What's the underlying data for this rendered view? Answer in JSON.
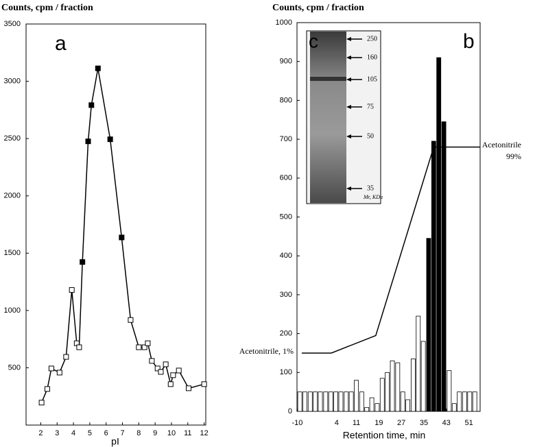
{
  "chart_data": [
    {
      "type": "line",
      "panel_label": "a",
      "y_label": "Counts, cpm / fraction",
      "x_label": "pI",
      "xlim": [
        1.1,
        12.1
      ],
      "xticks": [
        2,
        3,
        4,
        5,
        6,
        7,
        8,
        9,
        10,
        11,
        12
      ],
      "ylim": [
        0,
        3500
      ],
      "yticks": [
        500,
        1000,
        1500,
        2000,
        2500,
        3000,
        3500
      ],
      "series": [
        {
          "color": "#000000",
          "x": [
            2.05,
            2.4,
            2.65,
            3.15,
            3.55,
            3.9,
            4.2,
            4.35,
            4.55,
            4.9,
            5.1,
            5.5,
            6.25,
            6.95,
            7.5,
            8.0,
            8.35,
            8.55,
            8.8,
            9.15,
            9.35,
            9.65,
            9.95,
            10.1,
            10.45,
            11.05,
            12.0
          ],
          "values": [
            196,
            315,
            494,
            458,
            595,
            1179,
            714,
            679,
            1423,
            2476,
            2792,
            3113,
            2494,
            1637,
            917,
            679,
            679,
            714,
            560,
            494,
            464,
            530,
            357,
            435,
            476,
            321,
            357
          ],
          "point_colors": [
            "#ffffff",
            "#ffffff",
            "#ffffff",
            "#ffffff",
            "#ffffff",
            "#ffffff",
            "#ffffff",
            "#ffffff",
            "#000000",
            "#000000",
            "#000000",
            "#000000",
            "#000000",
            "#000000",
            "#ffffff",
            "#ffffff",
            "#ffffff",
            "#ffffff",
            "#ffffff",
            "#ffffff",
            "#ffffff",
            "#ffffff",
            "#ffffff",
            "#ffffff",
            "#ffffff",
            "#ffffff",
            "#ffffff"
          ]
        }
      ]
    },
    {
      "type": "bar",
      "panel_label": "b",
      "y_label": "Counts, cpm / fraction",
      "x_label": "Retention time, min",
      "xlim": [
        -10.1,
        55
      ],
      "xticks": [
        -10,
        4,
        11,
        19,
        27,
        35,
        43,
        51
      ],
      "ylim": [
        0,
        1000
      ],
      "yticks": [
        0,
        100,
        200,
        300,
        400,
        500,
        600,
        700,
        800,
        900,
        1000
      ],
      "series": [
        {
          "x": [
            -9.1,
            -7.3,
            -5.4,
            -3.6,
            -1.8,
            0.1,
            1.9,
            3.7,
            5.5,
            7.4,
            9.2,
            11.0,
            12.9,
            14.7,
            16.5,
            18.4,
            20.2,
            22.0,
            23.8,
            25.7,
            27.5,
            29.3,
            31.2,
            33.0,
            34.8,
            36.7,
            38.5,
            40.3,
            42.1,
            44.0,
            45.8,
            47.6,
            49.5,
            51.3,
            53.1
          ],
          "values": [
            50,
            50,
            50,
            50,
            50,
            50,
            50,
            50,
            50,
            50,
            50,
            80,
            50,
            10,
            35,
            20,
            85,
            100,
            130,
            125,
            50,
            30,
            135,
            245,
            180,
            445,
            695,
            910,
            745,
            105,
            20,
            50,
            50,
            50,
            50
          ],
          "colors": [
            "#ffffff",
            "#ffffff",
            "#ffffff",
            "#ffffff",
            "#ffffff",
            "#ffffff",
            "#ffffff",
            "#ffffff",
            "#ffffff",
            "#ffffff",
            "#ffffff",
            "#ffffff",
            "#ffffff",
            "#ffffff",
            "#ffffff",
            "#ffffff",
            "#ffffff",
            "#ffffff",
            "#ffffff",
            "#ffffff",
            "#ffffff",
            "#ffffff",
            "#ffffff",
            "#ffffff",
            "#ffffff",
            "#000000",
            "#000000",
            "#000000",
            "#000000",
            "#ffffff",
            "#ffffff",
            "#ffffff",
            "#ffffff",
            "#ffffff",
            "#ffffff"
          ]
        }
      ],
      "gradient": {
        "x": [
          -8.4,
          2.1,
          17.9,
          38.5,
          55
        ],
        "values": [
          150,
          150,
          195,
          680,
          680
        ],
        "color": "#000000"
      },
      "annotations": [
        "Acetonitrile, 1%",
        "Acetonitrile",
        "99%"
      ],
      "inset": {
        "panel_label": "c",
        "markers": [
          250,
          160,
          105,
          75,
          50,
          35
        ],
        "unit_label": "Mr, KDa"
      }
    }
  ]
}
